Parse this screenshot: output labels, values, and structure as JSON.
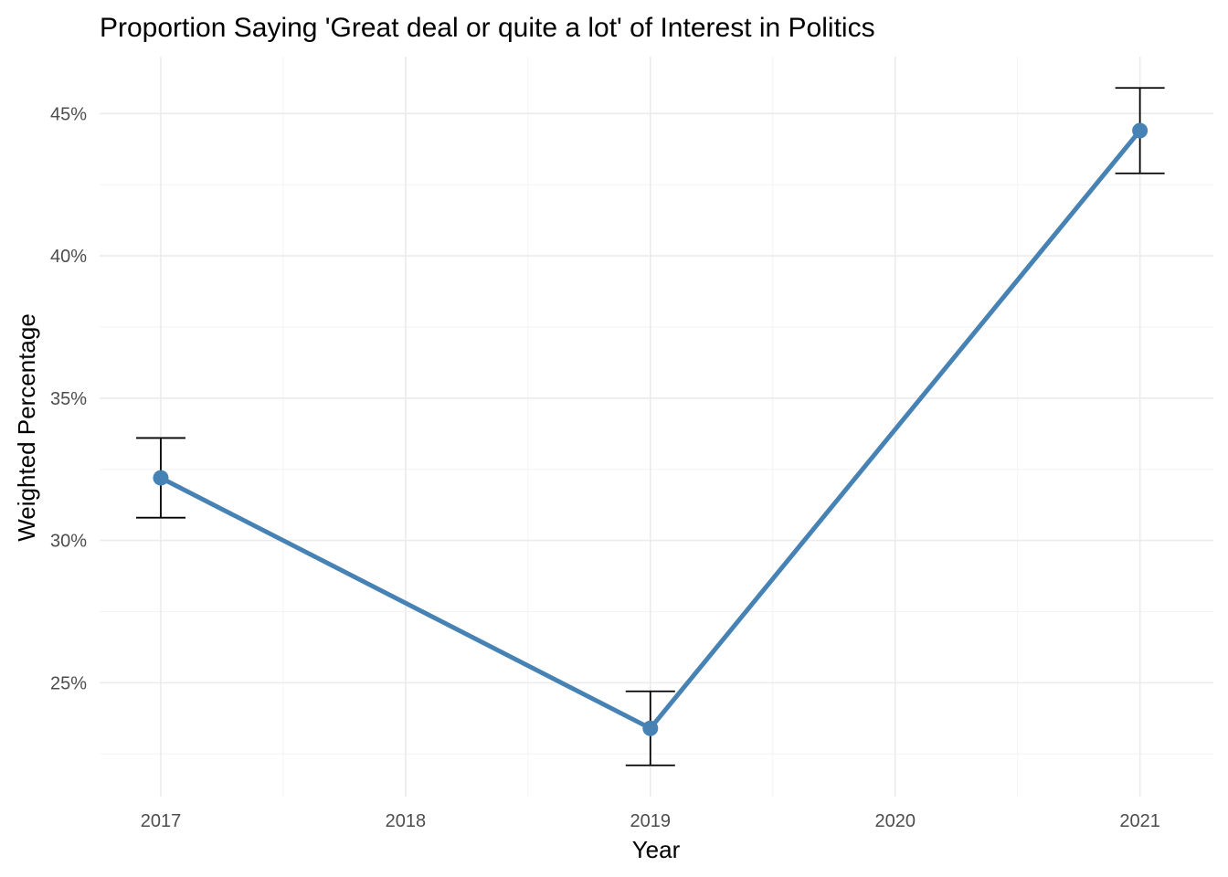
{
  "chart_data": {
    "type": "line",
    "title": "Proportion Saying 'Great deal or quite a lot' of Interest in Politics",
    "xlabel": "Year",
    "ylabel": "Weighted Percentage",
    "x": [
      2017,
      2019,
      2021
    ],
    "x_ticks": [
      2017,
      2018,
      2019,
      2020,
      2021
    ],
    "x_tick_labels": [
      "2017",
      "2018",
      "2019",
      "2020",
      "2021"
    ],
    "xlim": [
      2016.75,
      2021.3
    ],
    "y_ticks": [
      25,
      30,
      35,
      40,
      45
    ],
    "y_tick_labels": [
      "25%",
      "30%",
      "35%",
      "40%",
      "45%"
    ],
    "ylim": [
      21.0,
      47.0
    ],
    "grid": true,
    "legend": "none",
    "series": [
      {
        "values": [
          32.2,
          23.4,
          44.4
        ],
        "lower": [
          30.8,
          22.1,
          42.9
        ],
        "upper": [
          33.6,
          24.7,
          45.9
        ],
        "color": "#4682b4"
      }
    ]
  }
}
